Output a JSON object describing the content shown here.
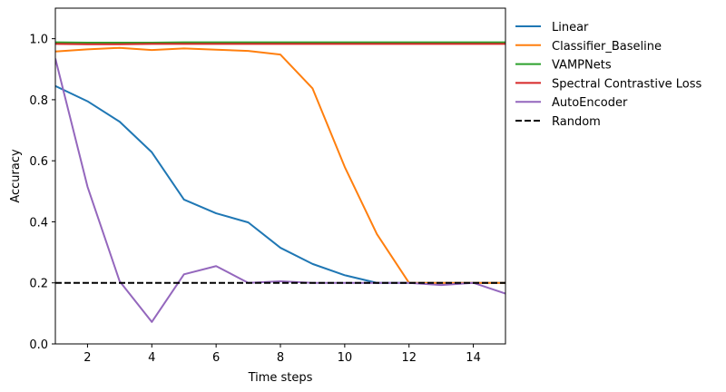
{
  "chart_data": {
    "type": "line",
    "xlabel": "Time steps",
    "ylabel": "Accuracy",
    "xlim": [
      1,
      15
    ],
    "ylim": [
      0.0,
      1.1
    ],
    "xticks": [
      2,
      4,
      6,
      8,
      10,
      12,
      14
    ],
    "yticks": [
      0.0,
      0.2,
      0.4,
      0.6,
      0.8,
      1.0
    ],
    "grid": false,
    "legend_position": "outside-right-top",
    "x": [
      1,
      2,
      3,
      4,
      5,
      6,
      7,
      8,
      9,
      10,
      11,
      12,
      13,
      14,
      15
    ],
    "series": [
      {
        "name": "Linear",
        "color": "#1f77b4",
        "dash": "solid",
        "values": [
          0.845,
          0.795,
          0.728,
          0.628,
          0.473,
          0.428,
          0.398,
          0.315,
          0.262,
          0.225,
          0.2,
          0.2,
          0.2,
          0.2,
          0.2
        ]
      },
      {
        "name": "Classifier_Baseline",
        "color": "#ff7f0e",
        "dash": "solid",
        "values": [
          0.958,
          0.965,
          0.97,
          0.963,
          0.968,
          0.964,
          0.96,
          0.948,
          0.837,
          0.58,
          0.36,
          0.2,
          0.2,
          0.2,
          0.2
        ]
      },
      {
        "name": "VAMPNets",
        "color": "#2ca02c",
        "dash": "solid",
        "values": [
          0.988,
          0.987,
          0.987,
          0.987,
          0.988,
          0.988,
          0.988,
          0.988,
          0.988,
          0.988,
          0.988,
          0.988,
          0.988,
          0.988,
          0.988
        ]
      },
      {
        "name": "Spectral Contrastive Loss",
        "color": "#d62728",
        "dash": "solid",
        "values": [
          0.983,
          0.982,
          0.982,
          0.983,
          0.983,
          0.983,
          0.983,
          0.983,
          0.983,
          0.983,
          0.983,
          0.983,
          0.983,
          0.983,
          0.983
        ]
      },
      {
        "name": "AutoEncoder",
        "color": "#9467bd",
        "dash": "solid",
        "values": [
          0.935,
          0.515,
          0.205,
          0.072,
          0.228,
          0.255,
          0.2,
          0.205,
          0.2,
          0.2,
          0.2,
          0.2,
          0.193,
          0.2,
          0.165
        ]
      },
      {
        "name": "Random",
        "color": "#000000",
        "dash": "dashed",
        "values": [
          0.2,
          0.2,
          0.2,
          0.2,
          0.2,
          0.2,
          0.2,
          0.2,
          0.2,
          0.2,
          0.2,
          0.2,
          0.2,
          0.2,
          0.2
        ]
      }
    ]
  }
}
